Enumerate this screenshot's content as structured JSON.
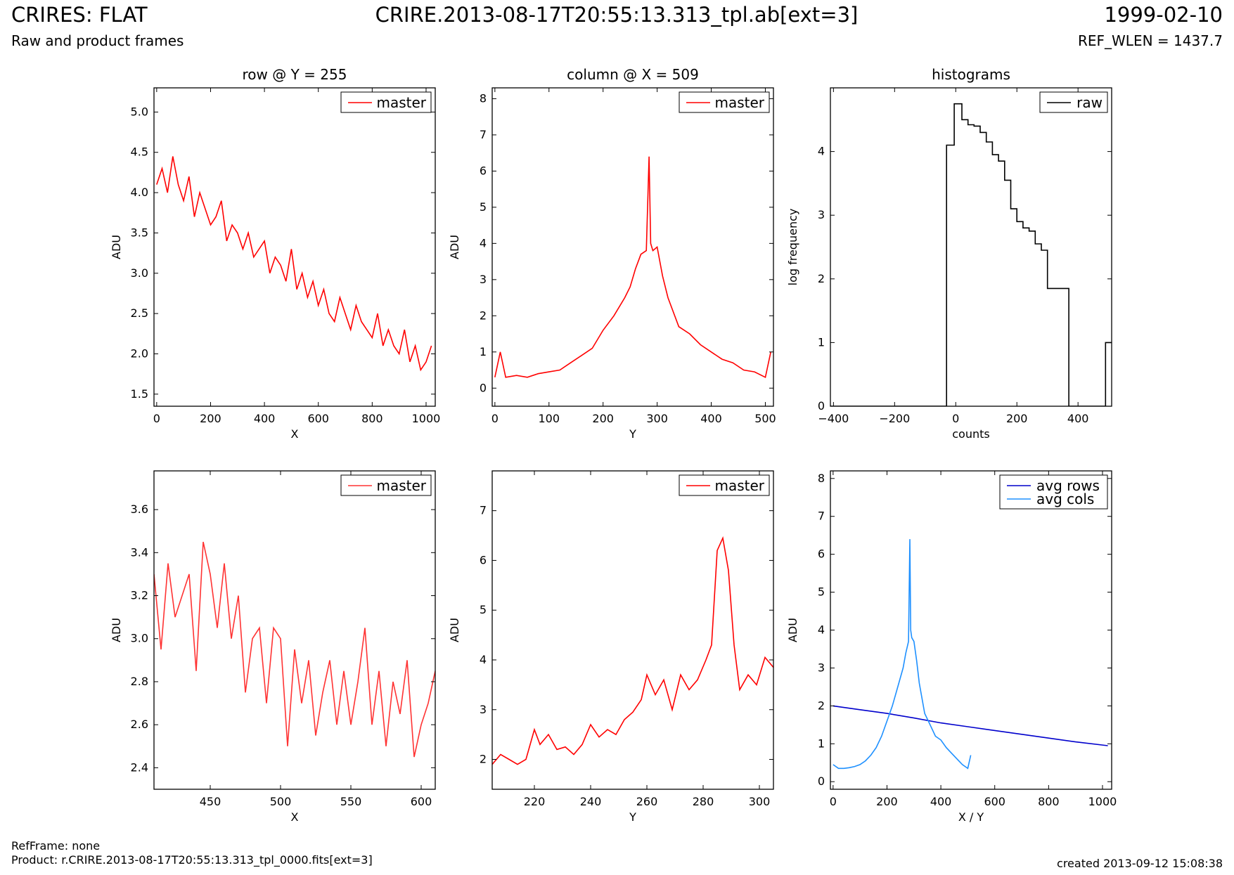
{
  "header": {
    "title": "CRIRES: FLAT",
    "subtitle": "Raw and product frames",
    "file": "CRIRE.2013-08-17T20:55:13.313_tpl.ab[ext=3]",
    "date": "1999-02-10",
    "ref_wlen": "REF_WLEN = 1437.7"
  },
  "footer": {
    "ref_frame": "RefFrame: none",
    "product": "Product: r.CRIRE.2013-08-17T20:55:13.313_tpl_0000.fits[ext=3]",
    "created": "created 2013-09-12 15:08:38"
  },
  "colors": {
    "red": "#ff0000",
    "black": "#000000",
    "blue": "#0000cc",
    "lightblue": "#1e90ff"
  },
  "chart_data": [
    {
      "type": "line",
      "title": "row @ Y = 255",
      "xlabel": "X",
      "ylabel": "ADU",
      "xlim": [
        -10,
        1034
      ],
      "ylim": [
        1.35,
        5.3
      ],
      "xticks": [
        0,
        200,
        400,
        600,
        800,
        1000
      ],
      "yticks": [
        1.5,
        2.0,
        2.5,
        3.0,
        3.5,
        4.0,
        4.5,
        5.0
      ],
      "legend": "upper right",
      "series": [
        {
          "name": "master",
          "color": "#ff0000",
          "x": [
            0,
            20,
            40,
            60,
            80,
            100,
            120,
            140,
            160,
            180,
            200,
            220,
            240,
            260,
            280,
            300,
            320,
            340,
            360,
            380,
            400,
            420,
            440,
            460,
            480,
            500,
            520,
            540,
            560,
            580,
            600,
            620,
            640,
            660,
            680,
            700,
            720,
            740,
            760,
            780,
            800,
            820,
            840,
            860,
            880,
            900,
            920,
            940,
            960,
            980,
            1000,
            1020
          ],
          "y": [
            4.1,
            4.3,
            4.0,
            4.45,
            4.1,
            3.9,
            4.2,
            3.7,
            4.0,
            3.8,
            3.6,
            3.7,
            3.9,
            3.4,
            3.6,
            3.5,
            3.3,
            3.5,
            3.2,
            3.3,
            3.4,
            3.0,
            3.2,
            3.1,
            2.9,
            3.3,
            2.8,
            3.0,
            2.7,
            2.9,
            2.6,
            2.8,
            2.5,
            2.4,
            2.7,
            2.5,
            2.3,
            2.6,
            2.4,
            2.3,
            2.2,
            2.5,
            2.1,
            2.3,
            2.1,
            2.0,
            2.3,
            1.9,
            2.1,
            1.8,
            1.9,
            2.1
          ]
        }
      ]
    },
    {
      "type": "line",
      "title": "column @ X = 509",
      "xlabel": "Y",
      "ylabel": "ADU",
      "xlim": [
        -5,
        515
      ],
      "ylim": [
        -0.5,
        8.3
      ],
      "xticks": [
        0,
        100,
        200,
        300,
        400,
        500
      ],
      "yticks": [
        0,
        1,
        2,
        3,
        4,
        5,
        6,
        7,
        8
      ],
      "legend": "upper right",
      "series": [
        {
          "name": "master",
          "color": "#ff0000",
          "x": [
            0,
            10,
            20,
            40,
            60,
            80,
            100,
            120,
            140,
            160,
            180,
            200,
            220,
            240,
            250,
            260,
            270,
            280,
            285,
            288,
            292,
            300,
            310,
            320,
            340,
            360,
            380,
            400,
            420,
            440,
            460,
            480,
            500,
            510
          ],
          "y": [
            0.3,
            1.0,
            0.3,
            0.35,
            0.3,
            0.4,
            0.45,
            0.5,
            0.7,
            0.9,
            1.1,
            1.6,
            2.0,
            2.5,
            2.8,
            3.3,
            3.7,
            3.8,
            6.4,
            4.0,
            3.8,
            3.9,
            3.1,
            2.5,
            1.7,
            1.5,
            1.2,
            1.0,
            0.8,
            0.7,
            0.5,
            0.45,
            0.3,
            1.0
          ]
        }
      ]
    },
    {
      "type": "line",
      "title": "histograms",
      "xlabel": "counts",
      "ylabel": "log frequency",
      "xlim": [
        -410,
        510
      ],
      "ylim": [
        0,
        5.0
      ],
      "xticks": [
        -400,
        -200,
        0,
        200,
        400
      ],
      "yticks": [
        0,
        1,
        2,
        3,
        4
      ],
      "legend": "upper right",
      "series": [
        {
          "name": "raw",
          "color": "#000000",
          "x": [
            -410,
            -30,
            -30,
            -5,
            20,
            40,
            60,
            80,
            100,
            120,
            140,
            160,
            180,
            200,
            220,
            240,
            260,
            280,
            300,
            330,
            350,
            370,
            370,
            490,
            490,
            510
          ],
          "y": [
            0,
            0,
            4.1,
            4.75,
            4.5,
            4.42,
            4.4,
            4.3,
            4.15,
            3.95,
            3.85,
            3.55,
            3.1,
            2.9,
            2.8,
            2.75,
            2.55,
            2.45,
            1.85,
            1.85,
            1.85,
            0,
            0,
            0,
            1.0,
            1.0
          ]
        }
      ]
    },
    {
      "type": "line",
      "title": "",
      "xlabel": "X",
      "ylabel": "ADU",
      "xlim": [
        410,
        610
      ],
      "ylim": [
        2.3,
        3.78
      ],
      "xticks": [
        450,
        500,
        550,
        600
      ],
      "yticks": [
        2.4,
        2.6,
        2.8,
        3.0,
        3.2,
        3.4,
        3.6
      ],
      "legend": "upper right",
      "series": [
        {
          "name": "master",
          "color": "#ff3333",
          "x": [
            410,
            415,
            420,
            425,
            430,
            435,
            440,
            445,
            450,
            455,
            460,
            465,
            470,
            475,
            480,
            485,
            490,
            495,
            500,
            505,
            510,
            515,
            520,
            525,
            530,
            535,
            540,
            545,
            550,
            555,
            560,
            565,
            570,
            575,
            580,
            585,
            590,
            595,
            600,
            605,
            610
          ],
          "y": [
            3.3,
            2.95,
            3.35,
            3.1,
            3.2,
            3.3,
            2.85,
            3.45,
            3.3,
            3.05,
            3.35,
            3.0,
            3.2,
            2.75,
            3.0,
            3.05,
            2.7,
            3.05,
            3.0,
            2.5,
            2.95,
            2.7,
            2.9,
            2.55,
            2.75,
            2.9,
            2.6,
            2.85,
            2.6,
            2.8,
            3.05,
            2.6,
            2.85,
            2.5,
            2.8,
            2.65,
            2.9,
            2.45,
            2.6,
            2.7,
            2.85
          ]
        }
      ]
    },
    {
      "type": "line",
      "title": "",
      "xlabel": "Y",
      "ylabel": "ADU",
      "xlim": [
        205,
        305
      ],
      "ylim": [
        1.4,
        7.8
      ],
      "xticks": [
        220,
        240,
        260,
        280,
        300
      ],
      "yticks": [
        2,
        3,
        4,
        5,
        6,
        7
      ],
      "legend": "upper right",
      "series": [
        {
          "name": "master",
          "color": "#ff0000",
          "x": [
            205,
            208,
            211,
            214,
            217,
            220,
            222,
            225,
            228,
            231,
            234,
            237,
            240,
            243,
            246,
            249,
            252,
            255,
            258,
            260,
            263,
            266,
            269,
            272,
            275,
            278,
            281,
            283,
            285,
            287,
            289,
            291,
            293,
            296,
            299,
            302,
            305
          ],
          "y": [
            1.9,
            2.1,
            2.0,
            1.9,
            2.0,
            2.6,
            2.3,
            2.5,
            2.2,
            2.25,
            2.1,
            2.3,
            2.7,
            2.45,
            2.6,
            2.5,
            2.8,
            2.95,
            3.2,
            3.7,
            3.3,
            3.6,
            3.0,
            3.7,
            3.4,
            3.6,
            4.0,
            4.3,
            6.2,
            6.45,
            5.8,
            4.3,
            3.4,
            3.7,
            3.5,
            4.05,
            3.85
          ]
        }
      ]
    },
    {
      "type": "line",
      "title": "",
      "xlabel": "X / Y",
      "ylabel": "ADU",
      "xlim": [
        -10,
        1034
      ],
      "ylim": [
        -0.2,
        8.2
      ],
      "xticks": [
        0,
        200,
        400,
        600,
        800,
        1000
      ],
      "yticks": [
        0,
        1,
        2,
        3,
        4,
        5,
        6,
        7,
        8
      ],
      "legend": "upper right",
      "series": [
        {
          "name": "avg rows",
          "color": "#0000cc",
          "x": [
            0,
            100,
            200,
            300,
            400,
            500,
            600,
            700,
            800,
            900,
            1020
          ],
          "y": [
            2.0,
            1.9,
            1.8,
            1.68,
            1.55,
            1.45,
            1.35,
            1.25,
            1.15,
            1.05,
            0.95
          ]
        },
        {
          "name": "avg cols",
          "color": "#1e90ff",
          "x": [
            0,
            20,
            40,
            60,
            80,
            100,
            120,
            140,
            160,
            180,
            200,
            220,
            240,
            260,
            270,
            280,
            285,
            288,
            292,
            300,
            310,
            320,
            340,
            360,
            380,
            400,
            420,
            440,
            460,
            480,
            500,
            511
          ],
          "y": [
            0.45,
            0.35,
            0.35,
            0.37,
            0.4,
            0.45,
            0.55,
            0.7,
            0.9,
            1.2,
            1.6,
            2.0,
            2.5,
            3.0,
            3.4,
            3.7,
            6.4,
            4.0,
            3.8,
            3.7,
            3.2,
            2.6,
            1.8,
            1.5,
            1.2,
            1.1,
            0.9,
            0.75,
            0.6,
            0.45,
            0.35,
            0.7
          ]
        }
      ]
    }
  ]
}
